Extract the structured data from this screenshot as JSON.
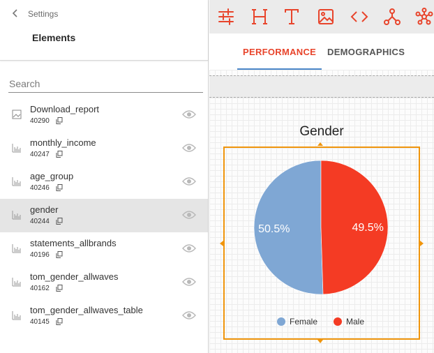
{
  "header": {
    "breadcrumb": "Settings",
    "title": "Elements"
  },
  "search": {
    "placeholder": "Search"
  },
  "elements": [
    {
      "name": "Download_report",
      "id": "40290",
      "icon": "image-icon",
      "selected": false
    },
    {
      "name": "monthly_income",
      "id": "40247",
      "icon": "bar-chart-icon",
      "selected": false
    },
    {
      "name": "age_group",
      "id": "40246",
      "icon": "bar-chart-icon",
      "selected": false
    },
    {
      "name": "gender",
      "id": "40244",
      "icon": "bar-chart-icon",
      "selected": true
    },
    {
      "name": "statements_allbrands",
      "id": "40196",
      "icon": "bar-chart-icon",
      "selected": false
    },
    {
      "name": "tom_gender_allwaves",
      "id": "40162",
      "icon": "bar-chart-icon",
      "selected": false
    },
    {
      "name": "tom_gender_allwaves_table",
      "id": "40145",
      "icon": "bar-chart-icon",
      "selected": false
    }
  ],
  "toolbar": {
    "icons": [
      "sliders-icon",
      "heading-icon",
      "text-icon",
      "image-icon",
      "code-icon",
      "hierarchy-icon",
      "network-icon"
    ],
    "accent": "#e8442b"
  },
  "tabs": [
    {
      "label": "PERFORMANCE",
      "active": true
    },
    {
      "label": "DEMOGRAPHICS",
      "active": false
    }
  ],
  "colors": {
    "accent": "#e8442b",
    "tab_underline": "#4a86c8",
    "selection_border": "#f0950c"
  },
  "chart_data": {
    "type": "pie",
    "title": "Gender",
    "categories": [
      "Female",
      "Male"
    ],
    "values": [
      50.5,
      49.5
    ],
    "labels": [
      "50.5%",
      "49.5%"
    ],
    "colors": [
      "#7fa7d4",
      "#f43b24"
    ],
    "legend": "bottom"
  }
}
